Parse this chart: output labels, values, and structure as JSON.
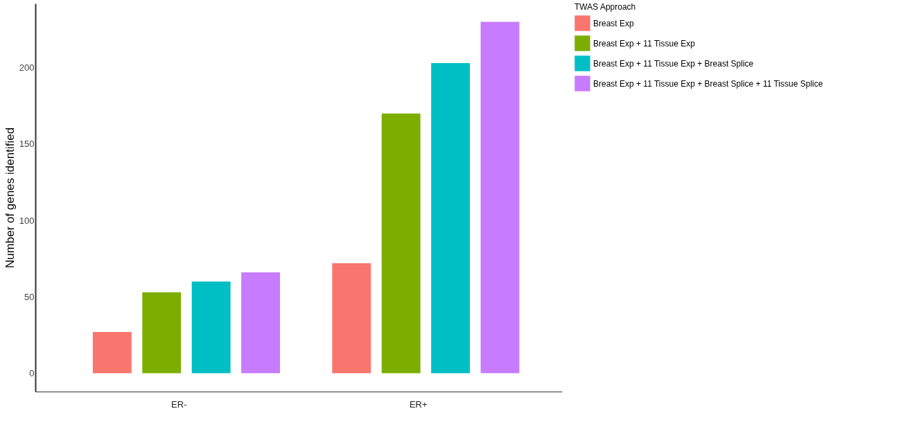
{
  "chart_data": {
    "type": "bar",
    "ylabel": "Number of genes identified",
    "legend_title": "TWAS Approach",
    "categories": [
      "ER-",
      "ER+"
    ],
    "series": [
      {
        "name": "Breast Exp",
        "color": "#f8766d",
        "values": [
          27,
          72
        ]
      },
      {
        "name": "Breast Exp + 11 Tissue Exp",
        "color": "#7cae00",
        "values": [
          53,
          170
        ]
      },
      {
        "name": "Breast Exp + 11 Tissue Exp + Breast Splice",
        "color": "#00bfc4",
        "values": [
          60,
          203
        ]
      },
      {
        "name": "Breast Exp + 11 Tissue Exp + Breast Splice + 11 Tissue Splice",
        "color": "#c77cff",
        "values": [
          66,
          230
        ]
      }
    ],
    "ylim": [
      -12,
      242
    ],
    "yticks": [
      0,
      50,
      100,
      150,
      200
    ],
    "grid": false,
    "legend": "right"
  }
}
